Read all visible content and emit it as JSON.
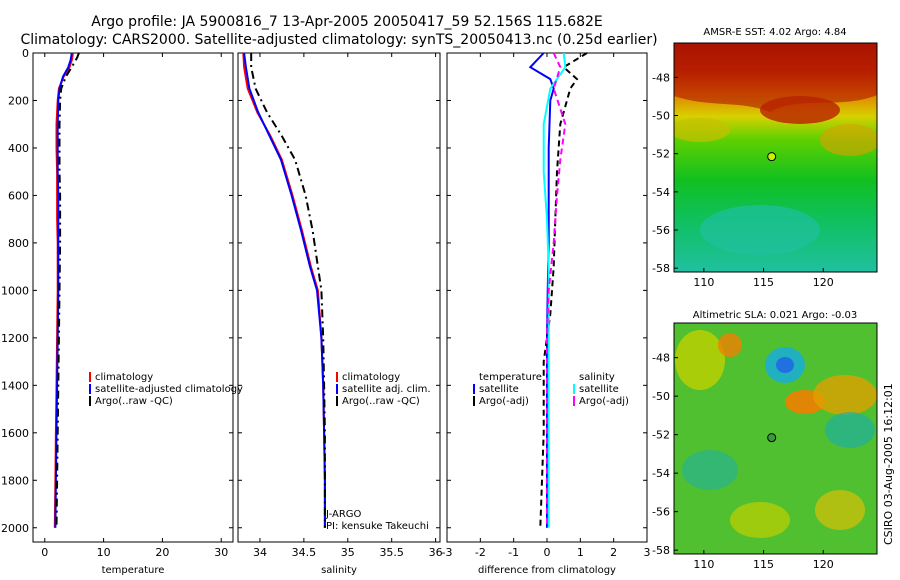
{
  "title_line1": "Argo profile: JA 5900816_7 13-Apr-2005 20050417_59 52.156S 115.682E",
  "title_line2": "Climatology: CARS2000. Satellite-adjusted climatology: synTS_20050413.nc (0.25d earlier)",
  "side_label": "CSIRO 03-Aug-2005 16:12:01",
  "colors": {
    "red": "#ff0000",
    "blue": "#0000ff",
    "black": "#000000",
    "cyan": "#00ffff",
    "magenta": "#ff00ff"
  },
  "chart_data": [
    {
      "type": "line",
      "id": "temperature",
      "xlabel": "temperature",
      "ylabel": "",
      "xlim": [
        -2,
        32
      ],
      "ylim": [
        2060,
        0
      ],
      "xticks": [
        0,
        10,
        20,
        30
      ],
      "yticks": [
        0,
        200,
        400,
        600,
        800,
        1000,
        1200,
        1400,
        1600,
        1800,
        2000
      ],
      "legend": [
        "climatology",
        "satellite-adjusted climatology",
        "Argo(..raw -QC)"
      ],
      "series": [
        {
          "name": "climatology",
          "color": "red",
          "dash": "",
          "points": [
            [
              4.8,
              0
            ],
            [
              4.6,
              30
            ],
            [
              4.2,
              60
            ],
            [
              3.2,
              100
            ],
            [
              2.4,
              150
            ],
            [
              2.2,
              200
            ],
            [
              2.0,
              300
            ],
            [
              2.0,
              400
            ],
            [
              2.1,
              500
            ],
            [
              2.1,
              600
            ],
            [
              2.1,
              700
            ],
            [
              2.2,
              800
            ],
            [
              2.2,
              1000
            ],
            [
              2.1,
              1200
            ],
            [
              2.0,
              1400
            ],
            [
              1.9,
              1600
            ],
            [
              1.8,
              1800
            ],
            [
              1.7,
              2000
            ]
          ]
        },
        {
          "name": "satellite-adjusted climatology",
          "color": "blue",
          "dash": "",
          "points": [
            [
              4.6,
              0
            ],
            [
              4.4,
              30
            ],
            [
              4.0,
              60
            ],
            [
              3.1,
              100
            ],
            [
              2.5,
              150
            ],
            [
              2.3,
              200
            ],
            [
              2.2,
              300
            ],
            [
              2.2,
              400
            ],
            [
              2.2,
              500
            ],
            [
              2.3,
              600
            ],
            [
              2.3,
              700
            ],
            [
              2.3,
              800
            ],
            [
              2.3,
              1000
            ],
            [
              2.2,
              1200
            ],
            [
              2.1,
              1400
            ],
            [
              2.0,
              1600
            ],
            [
              1.9,
              1800
            ],
            [
              1.8,
              2000
            ]
          ]
        },
        {
          "name": "Argo(..raw -QC)",
          "color": "black",
          "dash": "8,4,2,4",
          "points": [
            [
              5.8,
              0
            ],
            [
              5.5,
              20
            ],
            [
              4.8,
              50
            ],
            [
              3.6,
              100
            ],
            [
              2.8,
              150
            ],
            [
              2.6,
              200
            ],
            [
              2.5,
              300
            ],
            [
              2.5,
              400
            ],
            [
              2.5,
              500
            ],
            [
              2.6,
              600
            ],
            [
              2.6,
              700
            ],
            [
              2.6,
              800
            ],
            [
              2.5,
              1000
            ],
            [
              2.4,
              1200
            ],
            [
              2.3,
              1400
            ],
            [
              2.2,
              1600
            ],
            [
              2.1,
              1800
            ],
            [
              2.0,
              2000
            ]
          ]
        }
      ]
    },
    {
      "type": "line",
      "id": "salinity",
      "xlabel": "salinity",
      "ylabel": "",
      "xlim": [
        33.75,
        36.05
      ],
      "ylim": [
        2060,
        0
      ],
      "xticks": [
        34,
        34.5,
        35,
        35.5,
        36
      ],
      "yticks": [
        0,
        200,
        400,
        600,
        800,
        1000,
        1200,
        1400,
        1600,
        1800,
        2000
      ],
      "legend": [
        "climatology",
        "satellite adj. clim.",
        "Argo(..raw -QC)"
      ],
      "annotations": [
        "J-ARGO",
        "PI: kensuke Takeuchi"
      ],
      "series": [
        {
          "name": "climatology",
          "color": "red",
          "dash": "",
          "points": [
            [
              33.81,
              0
            ],
            [
              33.82,
              60
            ],
            [
              33.86,
              150
            ],
            [
              33.97,
              250
            ],
            [
              34.12,
              350
            ],
            [
              34.25,
              450
            ],
            [
              34.37,
              600
            ],
            [
              34.48,
              750
            ],
            [
              34.58,
              900
            ],
            [
              34.66,
              1000
            ],
            [
              34.7,
              1200
            ],
            [
              34.72,
              1400
            ],
            [
              34.73,
              1600
            ],
            [
              34.74,
              1800
            ],
            [
              34.74,
              2000
            ]
          ]
        },
        {
          "name": "satellite adj. clim.",
          "color": "blue",
          "dash": "",
          "points": [
            [
              33.82,
              0
            ],
            [
              33.84,
              60
            ],
            [
              33.88,
              150
            ],
            [
              33.98,
              250
            ],
            [
              34.11,
              350
            ],
            [
              34.24,
              450
            ],
            [
              34.36,
              600
            ],
            [
              34.47,
              750
            ],
            [
              34.57,
              900
            ],
            [
              34.65,
              1000
            ],
            [
              34.7,
              1200
            ],
            [
              34.72,
              1400
            ],
            [
              34.73,
              1600
            ],
            [
              34.74,
              1800
            ],
            [
              34.74,
              2000
            ]
          ]
        },
        {
          "name": "Argo(..raw -QC)",
          "color": "black",
          "dash": "8,4,2,4",
          "points": [
            [
              33.9,
              0
            ],
            [
              33.9,
              60
            ],
            [
              33.95,
              150
            ],
            [
              34.08,
              250
            ],
            [
              34.25,
              350
            ],
            [
              34.4,
              450
            ],
            [
              34.52,
              600
            ],
            [
              34.6,
              750
            ],
            [
              34.66,
              900
            ],
            [
              34.7,
              1000
            ],
            [
              34.72,
              1200
            ],
            [
              34.73,
              1400
            ],
            [
              34.74,
              1600
            ],
            [
              34.74,
              1800
            ],
            [
              34.74,
              2000
            ]
          ]
        }
      ]
    },
    {
      "type": "line",
      "id": "difference",
      "xlabel": "difference from climatology",
      "ylabel": "",
      "xlim": [
        -3,
        3
      ],
      "ylim": [
        2060,
        0
      ],
      "xticks": [
        -3,
        -2,
        -1,
        0,
        1,
        2,
        3
      ],
      "yticks": [
        0,
        200,
        400,
        600,
        800,
        1000,
        1200,
        1400,
        1600,
        1800,
        2000
      ],
      "legend_left": [
        "temperature",
        "satellite",
        "Argo(-adj)"
      ],
      "legend_right": [
        "salinity",
        "satellite",
        "Argo(-adj)"
      ],
      "series": [
        {
          "name": "satellite",
          "group": "temperature",
          "color": "blue",
          "dash": "",
          "points": [
            [
              -0.1,
              0
            ],
            [
              -0.5,
              60
            ],
            [
              0.1,
              110
            ],
            [
              0.2,
              150
            ],
            [
              0.1,
              200
            ],
            [
              0.05,
              400
            ],
            [
              0.05,
              600
            ],
            [
              0.05,
              800
            ],
            [
              0.02,
              1000
            ],
            [
              0.0,
              1200
            ],
            [
              0.0,
              1600
            ],
            [
              0.0,
              2000
            ]
          ]
        },
        {
          "name": "Argo(-adj)",
          "group": "temperature",
          "color": "black",
          "dash": "6,4",
          "points": [
            [
              1.2,
              0
            ],
            [
              0.5,
              60
            ],
            [
              0.9,
              110
            ],
            [
              0.7,
              150
            ],
            [
              0.4,
              300
            ],
            [
              0.3,
              500
            ],
            [
              0.25,
              700
            ],
            [
              0.2,
              900
            ],
            [
              0.1,
              1100
            ],
            [
              -0.1,
              1300
            ],
            [
              -0.1,
              1600
            ],
            [
              -0.2,
              2000
            ]
          ]
        },
        {
          "name": "satellite",
          "group": "salinity",
          "color": "cyan",
          "dash": "",
          "points": [
            [
              0.5,
              0
            ],
            [
              0.55,
              60
            ],
            [
              0.1,
              150
            ],
            [
              -0.1,
              300
            ],
            [
              -0.1,
              500
            ],
            [
              0.0,
              700
            ],
            [
              0.05,
              900
            ],
            [
              0.05,
              1000
            ],
            [
              0.05,
              1200
            ],
            [
              0.05,
              1600
            ],
            [
              0.05,
              2000
            ]
          ]
        },
        {
          "name": "Argo(-adj)",
          "group": "salinity",
          "color": "magenta",
          "dash": "6,4",
          "points": [
            [
              0.2,
              0
            ],
            [
              0.4,
              60
            ],
            [
              0.2,
              150
            ],
            [
              0.55,
              300
            ],
            [
              0.4,
              450
            ],
            [
              0.3,
              600
            ],
            [
              0.2,
              800
            ],
            [
              0.05,
              1000
            ],
            [
              0.0,
              1200
            ],
            [
              0.0,
              1600
            ],
            [
              0.0,
              2000
            ]
          ]
        }
      ]
    },
    {
      "type": "heatmap",
      "id": "sst-map",
      "title": "AMSR-E SST: 4.02 Argo: 4.84",
      "xlim": [
        107.5,
        124.5
      ],
      "ylim": [
        -58.2,
        -46.2
      ],
      "xticks": [
        110,
        115,
        120
      ],
      "yticks": [
        -48,
        -50,
        -52,
        -54,
        -56,
        -58
      ],
      "marker": {
        "lon": 115.682,
        "lat": -52.156,
        "color": "#c8f000"
      }
    },
    {
      "type": "heatmap",
      "id": "sla-map",
      "title": "Altimetric SLA: 0.021 Argo: -0.03",
      "xlim": [
        107.5,
        124.5
      ],
      "ylim": [
        -58.2,
        -46.2
      ],
      "xticks": [
        110,
        115,
        120
      ],
      "yticks": [
        -48,
        -50,
        -52,
        -54,
        -56,
        -58
      ],
      "marker": {
        "lon": 115.682,
        "lat": -52.156,
        "color": "#3a9a3a"
      }
    }
  ]
}
